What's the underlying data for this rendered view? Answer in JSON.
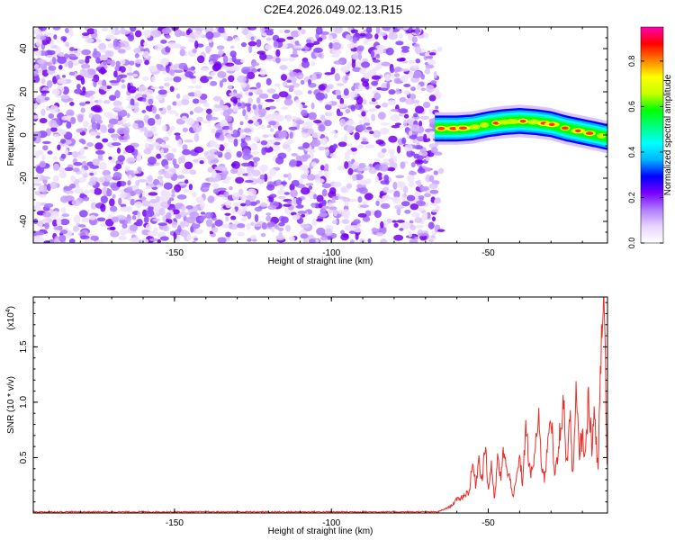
{
  "title": "C2E4.2026.049.02.13.R15",
  "chart_data": [
    {
      "type": "heatmap",
      "xlabel": "Height of straight line (km)",
      "ylabel": "Frequency (Hz)",
      "xlim": [
        -195,
        -12
      ],
      "ylim": [
        -50,
        50
      ],
      "xticks": [
        -150,
        -100,
        -50
      ],
      "xtick_labels": [
        "-150",
        "-100",
        "-50"
      ],
      "yticks": [
        -40,
        -20,
        0,
        20,
        40
      ],
      "ytick_labels": [
        "-40",
        "-20",
        "0",
        "20",
        "40"
      ],
      "noise_region_x": [
        -195,
        -66
      ],
      "signal_band": {
        "x": [
          -67,
          -60,
          -55,
          -50,
          -45,
          -40,
          -35,
          -30,
          -25,
          -20,
          -15,
          -12
        ],
        "center_hz": [
          3,
          3,
          3.5,
          5,
          6,
          6.5,
          6,
          5,
          3,
          1.5,
          0,
          -1
        ]
      },
      "colorbar": {
        "label": "Normalized spectral amplitude",
        "ticks": [
          0.0,
          0.2,
          0.4,
          0.6,
          0.8
        ],
        "tick_labels": [
          "0.0",
          "0.2",
          "0.4",
          "0.6",
          "0.8"
        ],
        "range": [
          0,
          0.95
        ],
        "colors": [
          "#ffffff",
          "#e8d4ff",
          "#b07cff",
          "#7a00ff",
          "#0000ff",
          "#00b4ff",
          "#00ffff",
          "#00ff80",
          "#00ff00",
          "#c8ff00",
          "#ffff00",
          "#ff8000",
          "#ff0000",
          "#ff00b4"
        ]
      }
    },
    {
      "type": "line",
      "xlabel": "Height of straight line (km)",
      "ylabel": "SNR (10 * v/v)",
      "multiplier_label": "(x10",
      "multiplier_exp": "4",
      "xlim": [
        -195,
        -12
      ],
      "ylim": [
        0,
        1.95
      ],
      "xticks": [
        -150,
        -100,
        -50
      ],
      "xtick_labels": [
        "-150",
        "-100",
        "-50"
      ],
      "yticks": [
        0.5,
        1.0,
        1.5
      ],
      "ytick_labels": [
        "0.5",
        "1.0",
        "1.5"
      ],
      "color": "#e8302a",
      "x": [
        -195,
        -150,
        -100,
        -66,
        -62,
        -60,
        -58,
        -56,
        -55,
        -54,
        -53,
        -52,
        -51,
        -50,
        -49,
        -48,
        -47,
        -46,
        -45,
        -44,
        -43,
        -42,
        -41,
        -40,
        -39,
        -38,
        -37,
        -36,
        -35,
        -34,
        -33,
        -32,
        -31,
        -30,
        -29,
        -28,
        -27,
        -26,
        -25,
        -24,
        -23,
        -22,
        -21,
        -20,
        -19,
        -18,
        -17,
        -16,
        -15,
        -14,
        -13,
        -12
      ],
      "y": [
        0.01,
        0.01,
        0.01,
        0.01,
        0.06,
        0.12,
        0.15,
        0.2,
        0.45,
        0.25,
        0.5,
        0.3,
        0.62,
        0.2,
        0.45,
        0.1,
        0.5,
        0.3,
        0.6,
        0.35,
        0.3,
        0.15,
        0.3,
        0.5,
        0.25,
        0.85,
        0.4,
        0.35,
        0.6,
        0.85,
        0.45,
        0.3,
        0.7,
        0.95,
        0.35,
        0.45,
        0.8,
        1.0,
        0.4,
        0.9,
        0.3,
        1.05,
        0.55,
        0.7,
        0.5,
        1.1,
        0.6,
        0.9,
        0.35,
        1.55,
        1.95,
        0.2
      ]
    }
  ]
}
